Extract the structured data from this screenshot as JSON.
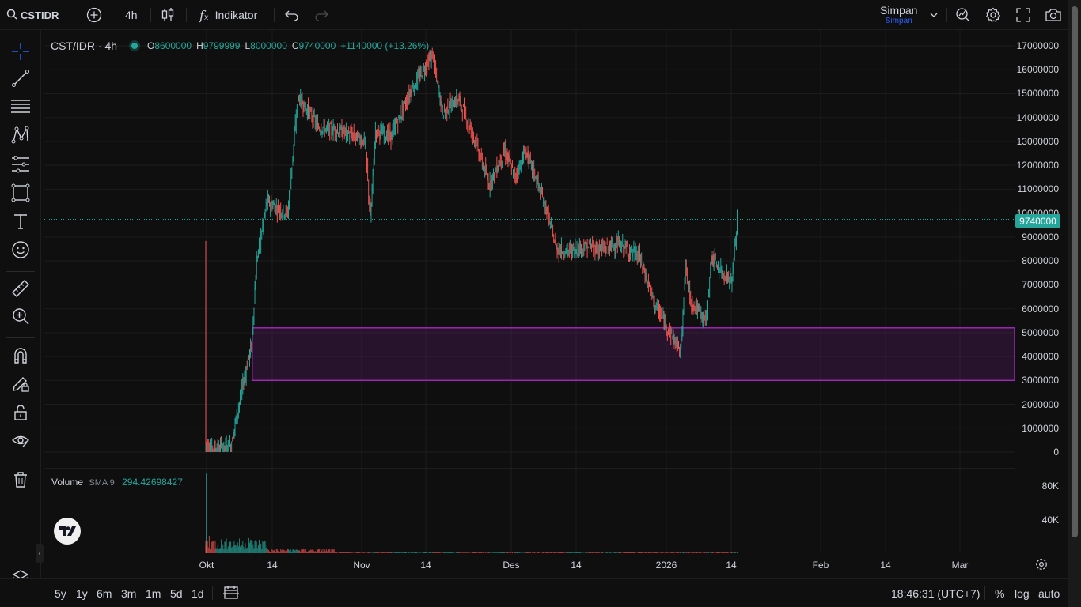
{
  "topbar": {
    "symbol": "CSTIDR",
    "interval": "4h",
    "indicators_label": "Indikator",
    "save_label": "Simpan",
    "save_sub": "Simpan"
  },
  "legend": {
    "title": "CST/IDR · 4h",
    "o_label": "O",
    "o_value": "8600000",
    "h_label": "H",
    "h_value": "9799999",
    "l_label": "L",
    "l_value": "8000000",
    "c_label": "C",
    "c_value": "9740000",
    "change": "+1140000 (+13.26%)"
  },
  "volume_legend": {
    "title": "Volume",
    "sma": "SMA 9",
    "value": "294.42698427"
  },
  "price_axis": {
    "ticks": [
      "17000000",
      "16000000",
      "15000000",
      "14000000",
      "13000000",
      "12000000",
      "11000000",
      "10000000",
      "9000000",
      "8000000",
      "7000000",
      "6000000",
      "5000000",
      "4000000",
      "3000000",
      "2000000",
      "1000000",
      "0"
    ],
    "last_price": "9740000"
  },
  "volume_axis": {
    "ticks": [
      "80K",
      "40K"
    ]
  },
  "time_axis": {
    "ticks": [
      "Okt",
      "14",
      "Nov",
      "14",
      "Des",
      "14",
      "2026",
      "14",
      "Feb",
      "14",
      "Mar"
    ]
  },
  "bottombar": {
    "ranges": [
      "5y",
      "1y",
      "6m",
      "3m",
      "1m",
      "5d",
      "1d"
    ],
    "clock": "18:46:31 (UTC+7)",
    "percent": "%",
    "log": "log",
    "auto": "auto"
  },
  "colors": {
    "up": "#26a69a",
    "down": "#ef5350",
    "zone": "#9c27b0",
    "background": "#0f0f0f"
  },
  "chart_data": {
    "type": "candlestick",
    "title": "CST/IDR · 4h",
    "price_range": [
      0,
      17000000
    ],
    "grid": true,
    "zone": {
      "price_top": 5200000,
      "price_bottom": 3000000,
      "start": "2025-10-09"
    },
    "last_price": 9740000,
    "path": [
      [
        "2025-09-30",
        8800000
      ],
      [
        "2025-09-30",
        300000
      ],
      [
        "2025-10-02",
        150000
      ],
      [
        "2025-10-05",
        250000
      ],
      [
        "2025-10-07",
        2500000
      ],
      [
        "2025-10-09",
        4500000
      ],
      [
        "2025-10-10",
        8000000
      ],
      [
        "2025-10-12",
        10500000
      ],
      [
        "2025-10-14",
        10200000
      ],
      [
        "2025-10-16",
        10000000
      ],
      [
        "2025-10-18",
        14900000
      ],
      [
        "2025-10-22",
        13600000
      ],
      [
        "2025-10-27",
        13400000
      ],
      [
        "2025-10-31",
        13000000
      ],
      [
        "2025-11-01",
        9700000
      ],
      [
        "2025-11-02",
        13500000
      ],
      [
        "2025-11-05",
        13200000
      ],
      [
        "2025-11-09",
        15200000
      ],
      [
        "2025-11-13",
        16600000
      ],
      [
        "2025-11-15",
        14200000
      ],
      [
        "2025-11-18",
        14800000
      ],
      [
        "2025-11-21",
        13200000
      ],
      [
        "2025-11-24",
        11200000
      ],
      [
        "2025-11-27",
        12600000
      ],
      [
        "2025-11-29",
        11500000
      ],
      [
        "2025-12-01",
        12600000
      ],
      [
        "2025-12-03",
        11500000
      ],
      [
        "2025-12-05",
        10200000
      ],
      [
        "2025-12-07",
        8500000
      ],
      [
        "2025-12-09",
        8400000
      ],
      [
        "2025-12-13",
        8600000
      ],
      [
        "2025-12-16",
        8500000
      ],
      [
        "2025-12-19",
        8700000
      ],
      [
        "2025-12-23",
        8200000
      ],
      [
        "2025-12-26",
        6200000
      ],
      [
        "2025-12-29",
        5000000
      ],
      [
        "2025-12-31",
        4200000
      ],
      [
        "2026-01-01",
        7800000
      ],
      [
        "2026-01-02",
        6300000
      ],
      [
        "2026-01-05",
        5500000
      ],
      [
        "2026-01-06",
        8200000
      ],
      [
        "2026-01-08",
        7500000
      ],
      [
        "2026-01-10",
        7200000
      ],
      [
        "2026-01-11",
        9740000
      ]
    ],
    "volume": {
      "peak": 95000,
      "spike_date": "2025-09-30"
    }
  }
}
